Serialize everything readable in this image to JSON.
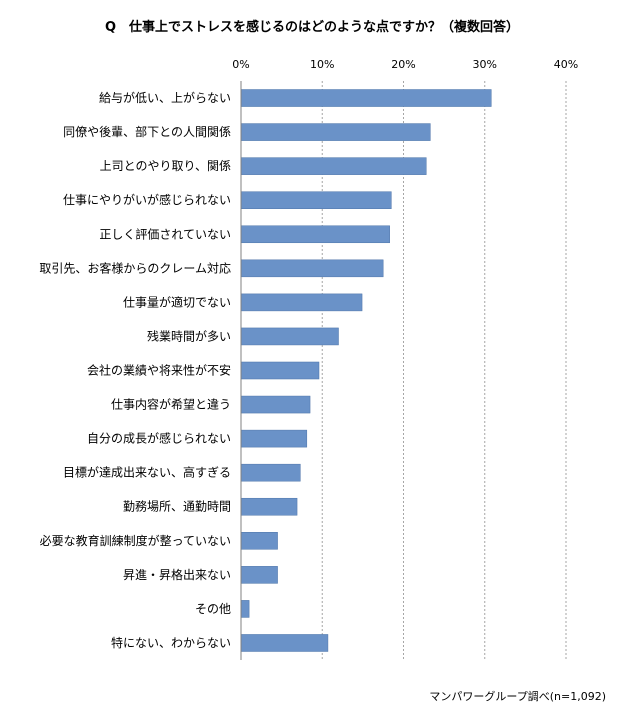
{
  "chart_data": {
    "type": "bar",
    "orientation": "horizontal",
    "title": "Q　仕事上でストレスを感じるのはどのような点ですか？（複数回答）",
    "categories": [
      "給与が低い、上がらない",
      "同僚や後輩、部下との人間関係",
      "上司とのやり取り、関係",
      "仕事にやりがいが感じられない",
      "正しく評価されていない",
      "取引先、お客様からのクレーム対応",
      "仕事量が適切でない",
      "残業時間が多い",
      "会社の業績や将来性が不安",
      "仕事内容が希望と違う",
      "自分の成長が感じられない",
      "目標が達成出来ない、高すぎる",
      "勤務場所、通勤時間",
      "必要な教育訓練制度が整っていない",
      "昇進・昇格出来ない",
      "その他",
      "特にない、わからない"
    ],
    "values": [
      30.8,
      23.3,
      22.8,
      18.5,
      18.3,
      17.5,
      14.9,
      12.0,
      9.6,
      8.5,
      8.1,
      7.3,
      6.9,
      4.5,
      4.5,
      1.0,
      10.7
    ],
    "xlim": [
      0,
      40
    ],
    "xticks": [
      "0%",
      "10%",
      "20%",
      "30%",
      "40%"
    ],
    "xtick_values": [
      0,
      10,
      20,
      30,
      40
    ],
    "grid": true,
    "bar_color": "#6a92c8",
    "bar_edge_color": "#4d74a8",
    "grid_color": "#a6a6a6",
    "note": "マンパワーグループ調べ(n=1,092)"
  }
}
